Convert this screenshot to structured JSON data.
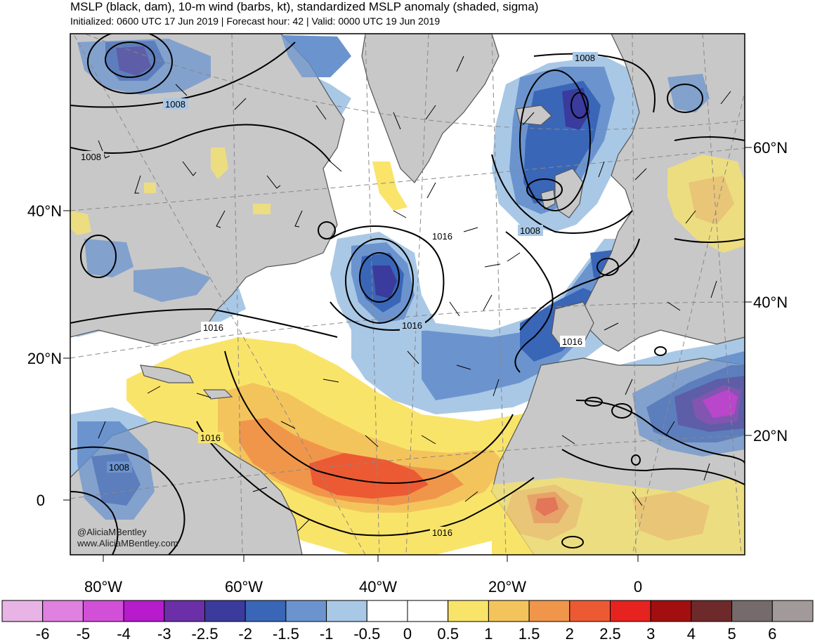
{
  "title": {
    "line1": "MSLP (black, dam), 10-m wind (barbs, kt), standardized MSLP anomaly (shaded, sigma)",
    "line2": "Initialized: 0600 UTC 17 Jun 2019 | Forecast hour: 42 | Valid: 0000 UTC 19 Jun 2019"
  },
  "axes": {
    "left_lat_labels": [
      "40°N",
      "20°N",
      "0"
    ],
    "right_lat_labels": [
      "60°N",
      "40°N",
      "20°N"
    ],
    "lon_labels": [
      "80°W",
      "60°W",
      "40°W",
      "20°W",
      "0"
    ]
  },
  "contour_labels": [
    "1008",
    "1008",
    "1008",
    "1008",
    "1016",
    "1016",
    "1016",
    "1016",
    "1016",
    "1016",
    "1008"
  ],
  "credit": {
    "handle": "@AliciaMBentley",
    "url": "www.AliciaMBentley.com"
  },
  "colorbar": {
    "tick_labels": [
      "-6",
      "-5",
      "-4",
      "-3",
      "-2.5",
      "-2",
      "-1.5",
      "-1",
      "-0.5",
      "0",
      "0.5",
      "1",
      "1.5",
      "2",
      "2.5",
      "3",
      "4",
      "5",
      "6"
    ],
    "colors": [
      "#e8b4e6",
      "#e080e0",
      "#d24fd8",
      "#b61bcc",
      "#6b2fa8",
      "#3a3b9c",
      "#3a66b8",
      "#6b94cf",
      "#a9c8e6",
      "#ffffff",
      "#ffffff",
      "#f9e46a",
      "#f4c45c",
      "#f0964a",
      "#ec5a33",
      "#e6231e",
      "#a30f11",
      "#6e2a2a",
      "#756b6b",
      "#a29a9a"
    ]
  }
}
